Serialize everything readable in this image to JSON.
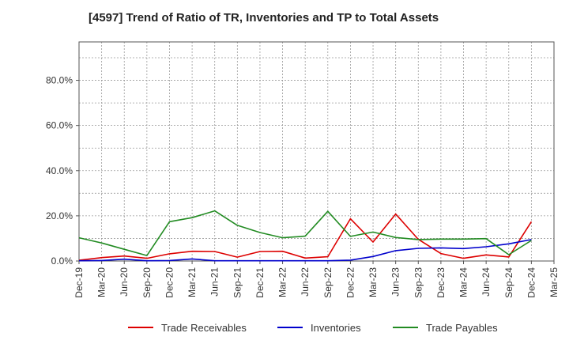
{
  "chart_data": {
    "type": "line",
    "title": "[4597]  Trend of Ratio of TR, Inventories and TP to Total Assets",
    "xlabel": "",
    "ylabel": "",
    "x": [
      "Dec-19",
      "Mar-20",
      "Jun-20",
      "Sep-20",
      "Dec-20",
      "Mar-21",
      "Jun-21",
      "Sep-21",
      "Dec-21",
      "Mar-22",
      "Jun-22",
      "Sep-22",
      "Dec-22",
      "Mar-23",
      "Jun-23",
      "Sep-23",
      "Dec-23",
      "Mar-24",
      "Jun-24",
      "Sep-24",
      "Dec-24"
    ],
    "x_ticks": [
      "Dec-19",
      "Mar-20",
      "Jun-20",
      "Sep-20",
      "Dec-20",
      "Mar-21",
      "Jun-21",
      "Sep-21",
      "Dec-21",
      "Mar-22",
      "Jun-22",
      "Sep-22",
      "Dec-22",
      "Mar-23",
      "Jun-23",
      "Sep-23",
      "Dec-23",
      "Mar-24",
      "Jun-24",
      "Sep-24",
      "Dec-24",
      "Mar-25"
    ],
    "y_ticks": [
      0,
      20,
      40,
      60,
      80
    ],
    "y_tick_labels": [
      "0.0%",
      "20.0%",
      "40.0%",
      "60.0%",
      "80.0%"
    ],
    "ylim": [
      0,
      97
    ],
    "grid": true,
    "legend_position": "bottom",
    "series": [
      {
        "name": "Trade Receivables",
        "color": "#dd0000",
        "values": [
          0.3,
          1.5,
          2.2,
          1.2,
          3.2,
          4.3,
          4.2,
          1.7,
          4.2,
          4.3,
          1.3,
          1.9,
          18.7,
          8.4,
          20.8,
          9.6,
          3.3,
          1.2,
          2.7,
          1.8,
          17.4
        ]
      },
      {
        "name": "Inventories",
        "color": "#0000cc",
        "values": [
          0.1,
          0.2,
          0.8,
          0.1,
          0.2,
          0.9,
          0.1,
          0.1,
          0.1,
          0.1,
          0.1,
          0.1,
          0.4,
          2.0,
          4.6,
          5.6,
          5.8,
          5.5,
          6.3,
          7.6,
          9.5
        ]
      },
      {
        "name": "Trade Payables",
        "color": "#228b22",
        "values": [
          10.3,
          8.0,
          5.2,
          2.4,
          17.4,
          19.2,
          22.2,
          15.8,
          12.6,
          10.3,
          11.0,
          22.0,
          10.9,
          12.8,
          10.4,
          9.5,
          9.7,
          9.7,
          9.9,
          2.8,
          9.1
        ]
      }
    ]
  }
}
